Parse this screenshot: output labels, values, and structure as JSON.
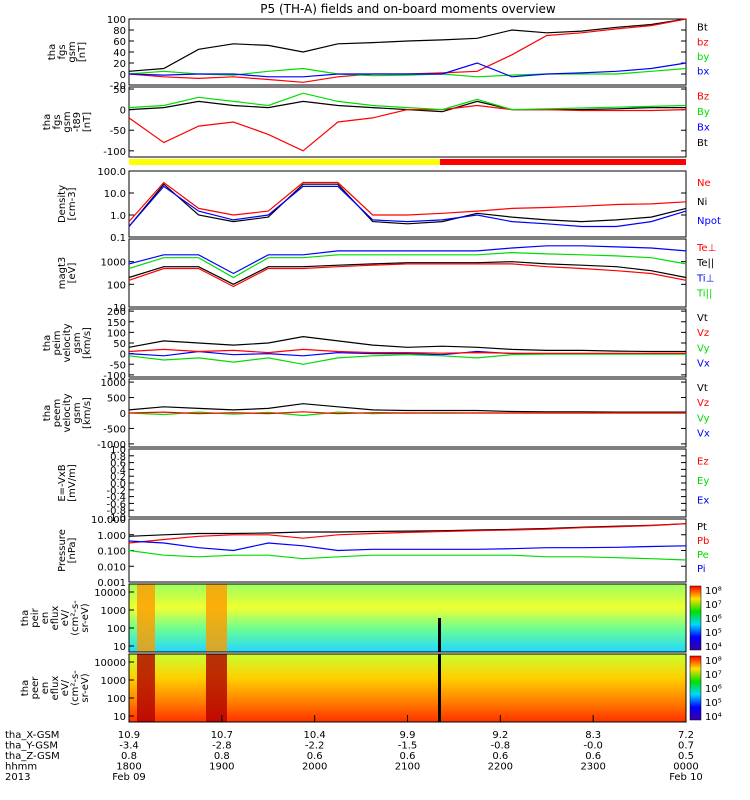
{
  "title": "P5 (TH-A) fields and on-board moments overview",
  "colors": {
    "black": "#000000",
    "red": "#ff0000",
    "green": "#00dd00",
    "blue": "#0000ff",
    "yellow": "#ffff00"
  },
  "chart_data": {
    "type": "line",
    "title": "P5 (TH-A) fields and on-board moments overview",
    "x_axis": {
      "ticks": [
        "1800",
        "1900",
        "2000",
        "2100",
        "2200",
        "2300",
        "0000"
      ],
      "rows": [
        {
          "label": "tha_X-GSM",
          "values": [
            "10.9",
            "10.7",
            "10.4",
            "9.9",
            "9.2",
            "8.3",
            "7.2"
          ]
        },
        {
          "label": "tha_Y-GSM",
          "values": [
            "-3.4",
            "-2.8",
            "-2.2",
            "-1.5",
            "-0.8",
            "-0.0",
            "0.7"
          ]
        },
        {
          "label": "tha_Z-GSM",
          "values": [
            "0.8",
            "0.8",
            "0.6",
            "0.6",
            "0.6",
            "0.6",
            "0.5"
          ]
        },
        {
          "label": "hhmm",
          "values": [
            "1800",
            "1900",
            "2000",
            "2100",
            "2200",
            "2300",
            "0000"
          ]
        },
        {
          "label": "2013",
          "values": [
            "Feb 09",
            "",
            "",
            "",
            "",
            "",
            "Feb 10"
          ]
        }
      ]
    },
    "panels": [
      {
        "id": "fgs",
        "ylabel": [
          "tha",
          "fgs",
          "gsm",
          "[nT]"
        ],
        "yticks": [
          "100",
          "80",
          "60",
          "40",
          "20",
          "0",
          "-20"
        ],
        "ylim": [
          -20,
          100
        ],
        "legend": [
          {
            "name": "Bt",
            "color": "black"
          },
          {
            "name": "bz",
            "color": "red"
          },
          {
            "name": "by",
            "color": "green"
          },
          {
            "name": "bx",
            "color": "blue"
          }
        ],
        "series": [
          {
            "name": "Bt",
            "color": "black",
            "values": [
              5,
              10,
              45,
              55,
              52,
              40,
              55,
              57,
              60,
              62,
              65,
              80,
              75,
              78,
              85,
              90,
              100
            ]
          },
          {
            "name": "bz",
            "color": "red",
            "values": [
              0,
              -5,
              -8,
              -5,
              -10,
              -15,
              -5,
              0,
              0,
              2,
              5,
              35,
              70,
              75,
              82,
              88,
              100
            ]
          },
          {
            "name": "by",
            "color": "green",
            "values": [
              0,
              5,
              0,
              -2,
              5,
              10,
              0,
              -3,
              -2,
              0,
              -5,
              -2,
              0,
              0,
              0,
              5,
              10
            ]
          },
          {
            "name": "bx",
            "color": "blue",
            "values": [
              0,
              -2,
              0,
              0,
              -5,
              -5,
              0,
              0,
              0,
              0,
              20,
              -5,
              0,
              2,
              5,
              10,
              20
            ]
          }
        ]
      },
      {
        "id": "fgs_t89",
        "ylabel": [
          "tha",
          "fgs",
          "gsm",
          "-t89",
          "[nT]"
        ],
        "yticks": [
          "50",
          "0",
          "-50",
          "-100"
        ],
        "ylim": [
          -115,
          55
        ],
        "legend": [
          {
            "name": "Bz",
            "color": "red"
          },
          {
            "name": "By",
            "color": "green"
          },
          {
            "name": "Bx",
            "color": "blue"
          },
          {
            "name": "Bt",
            "color": "black"
          }
        ],
        "series": [
          {
            "name": "Bt",
            "color": "black",
            "values": [
              0,
              5,
              20,
              10,
              5,
              20,
              10,
              5,
              0,
              -5,
              20,
              0,
              0,
              0,
              2,
              5,
              5
            ]
          },
          {
            "name": "Bz",
            "color": "red",
            "values": [
              -20,
              -80,
              -40,
              -30,
              -60,
              -100,
              -30,
              -20,
              0,
              0,
              10,
              0,
              0,
              -2,
              -2,
              -2,
              0
            ]
          },
          {
            "name": "By",
            "color": "green",
            "values": [
              5,
              10,
              30,
              20,
              10,
              40,
              20,
              10,
              5,
              0,
              25,
              0,
              2,
              4,
              6,
              8,
              10
            ]
          }
        ]
      },
      {
        "id": "density",
        "ylabel": [
          "Density",
          "[cm-3]"
        ],
        "yticks": [
          "100.0",
          "10.0",
          "1.0",
          "0.1"
        ],
        "log": true,
        "ylim": [
          0.1,
          100
        ],
        "legend": [
          {
            "name": "Ne",
            "color": "red"
          },
          {
            "name": "Ni",
            "color": "black"
          },
          {
            "name": "Npot",
            "color": "blue"
          }
        ],
        "series": [
          {
            "name": "Ne",
            "color": "red",
            "values": [
              0.5,
              30,
              2,
              1,
              1.5,
              30,
              30,
              1,
              1,
              1.2,
              1.5,
              2,
              2.2,
              2.5,
              3,
              3.2,
              4
            ]
          },
          {
            "name": "Ni",
            "color": "black",
            "values": [
              0.3,
              25,
              1,
              0.5,
              0.8,
              25,
              25,
              0.5,
              0.4,
              0.5,
              1.2,
              0.8,
              0.6,
              0.5,
              0.6,
              0.8,
              2
            ]
          },
          {
            "name": "Npot",
            "color": "blue",
            "values": [
              0.3,
              20,
              1.5,
              0.6,
              1,
              20,
              20,
              0.6,
              0.5,
              0.6,
              1,
              0.5,
              0.4,
              0.3,
              0.3,
              0.5,
              1.5
            ]
          }
        ]
      },
      {
        "id": "temp",
        "ylabel": [
          "magt3",
          "[eV]"
        ],
        "yticks": [
          "1000",
          "100",
          "10"
        ],
        "log": true,
        "ylim": [
          10,
          10000
        ],
        "legend": [
          {
            "name": "Te⊥",
            "color": "red"
          },
          {
            "name": "Te||",
            "color": "black"
          },
          {
            "name": "Ti⊥",
            "color": "blue"
          },
          {
            "name": "Ti||",
            "color": "green"
          }
        ],
        "series": [
          {
            "name": "Ti⊥",
            "color": "blue",
            "values": [
              800,
              2000,
              2000,
              300,
              2000,
              2000,
              3000,
              3000,
              3000,
              3000,
              3000,
              4000,
              5000,
              5000,
              4500,
              4000,
              3000
            ]
          },
          {
            "name": "Ti||",
            "color": "green",
            "values": [
              500,
              1500,
              1500,
              200,
              1500,
              1500,
              2000,
              2000,
              2000,
              2000,
              2000,
              2500,
              2200,
              2000,
              1800,
              1500,
              800
            ]
          },
          {
            "name": "Te||",
            "color": "black",
            "values": [
              200,
              600,
              600,
              100,
              600,
              600,
              700,
              800,
              900,
              900,
              900,
              1000,
              800,
              700,
              600,
              400,
              200
            ]
          },
          {
            "name": "Te⊥",
            "color": "red",
            "values": [
              150,
              500,
              500,
              80,
              500,
              500,
              600,
              700,
              800,
              800,
              800,
              800,
              600,
              500,
              400,
              300,
              150
            ]
          }
        ]
      },
      {
        "id": "peim",
        "ylabel": [
          "tha",
          "peim",
          "velocity",
          "gsm",
          "[km/s]"
        ],
        "yticks": [
          "200",
          "150",
          "100",
          "50",
          "0",
          "-50",
          "-100"
        ],
        "ylim": [
          -110,
          210
        ],
        "legend": [
          {
            "name": "Vt",
            "color": "black"
          },
          {
            "name": "Vz",
            "color": "red"
          },
          {
            "name": "Vy",
            "color": "green"
          },
          {
            "name": "Vx",
            "color": "blue"
          }
        ],
        "series": [
          {
            "name": "Vt",
            "color": "black",
            "values": [
              30,
              60,
              50,
              40,
              50,
              80,
              60,
              40,
              30,
              35,
              30,
              20,
              15,
              15,
              12,
              10,
              10
            ]
          },
          {
            "name": "Vx",
            "color": "blue",
            "values": [
              0,
              -10,
              10,
              -5,
              0,
              -10,
              5,
              0,
              0,
              -5,
              10,
              0,
              0,
              0,
              0,
              0,
              0
            ]
          },
          {
            "name": "Vy",
            "color": "green",
            "values": [
              -10,
              -30,
              -20,
              -40,
              -20,
              -50,
              -20,
              -10,
              -5,
              -10,
              -20,
              -5,
              -2,
              -2,
              -2,
              -2,
              -2
            ]
          },
          {
            "name": "Vz",
            "color": "red",
            "values": [
              10,
              20,
              10,
              15,
              5,
              20,
              10,
              5,
              5,
              2,
              5,
              2,
              1,
              1,
              1,
              1,
              1
            ]
          }
        ]
      },
      {
        "id": "peem",
        "ylabel": [
          "tha",
          "peem",
          "velocity",
          "gsm",
          "[km/s]"
        ],
        "yticks": [
          "1000",
          "500",
          "0",
          "-500",
          "-1000"
        ],
        "ylim": [
          -1100,
          1100
        ],
        "legend": [
          {
            "name": "Vt",
            "color": "black"
          },
          {
            "name": "Vz",
            "color": "red"
          },
          {
            "name": "Vy",
            "color": "green"
          },
          {
            "name": "Vx",
            "color": "blue"
          }
        ],
        "series": [
          {
            "name": "Vt",
            "color": "black",
            "values": [
              100,
              200,
              150,
              100,
              150,
              300,
              200,
              100,
              80,
              80,
              80,
              50,
              40,
              40,
              30,
              30,
              30
            ]
          },
          {
            "name": "Vy",
            "color": "green",
            "values": [
              0,
              -50,
              30,
              -40,
              20,
              -80,
              30,
              -20,
              0,
              -10,
              0,
              0,
              0,
              0,
              0,
              0,
              0
            ]
          },
          {
            "name": "Vz",
            "color": "red",
            "values": [
              0,
              30,
              -20,
              10,
              -20,
              40,
              -20,
              10,
              0,
              5,
              0,
              0,
              0,
              0,
              0,
              0,
              0
            ]
          }
        ]
      },
      {
        "id": "efield",
        "ylabel": [
          "E=-VxB",
          "[mV/m]"
        ],
        "yticks": [
          "1.0",
          "0.8",
          "0.6",
          "0.4",
          "0.2",
          "0.0",
          "-0.2",
          "-0.4",
          "-0.6",
          "-0.8",
          "-1.0"
        ],
        "ylim": [
          -1,
          1
        ],
        "legend": [
          {
            "name": "Ez",
            "color": "red"
          },
          {
            "name": "Ey",
            "color": "green"
          },
          {
            "name": "Ex",
            "color": "blue"
          }
        ],
        "series": []
      },
      {
        "id": "pressure",
        "ylabel": [
          "Pressure",
          "[nPa]"
        ],
        "yticks": [
          "10.000",
          "1.000",
          "0.100",
          "0.010",
          "0.001"
        ],
        "log": true,
        "ylim": [
          0.001,
          10
        ],
        "legend": [
          {
            "name": "Pt",
            "color": "black"
          },
          {
            "name": "Pb",
            "color": "red"
          },
          {
            "name": "Pe",
            "color": "green"
          },
          {
            "name": "Pi",
            "color": "blue"
          }
        ],
        "series": [
          {
            "name": "Pt",
            "color": "black",
            "values": [
              0.8,
              1,
              1.2,
              1.2,
              1.3,
              1.5,
              1.5,
              1.6,
              1.7,
              1.8,
              2,
              2.2,
              2.5,
              3,
              3.5,
              4,
              5
            ]
          },
          {
            "name": "Pb",
            "color": "red",
            "values": [
              0.3,
              0.5,
              0.8,
              1,
              1,
              0.6,
              1,
              1.2,
              1.4,
              1.6,
              1.8,
              2,
              2.3,
              2.8,
              3.2,
              3.8,
              5
            ]
          },
          {
            "name": "Pi",
            "color": "blue",
            "values": [
              0.4,
              0.3,
              0.15,
              0.1,
              0.3,
              0.2,
              0.1,
              0.12,
              0.12,
              0.12,
              0.12,
              0.13,
              0.15,
              0.15,
              0.16,
              0.18,
              0.2
            ]
          },
          {
            "name": "Pe",
            "color": "green",
            "values": [
              0.1,
              0.05,
              0.04,
              0.05,
              0.05,
              0.03,
              0.04,
              0.05,
              0.05,
              0.05,
              0.05,
              0.05,
              0.04,
              0.04,
              0.035,
              0.03,
              0.025
            ]
          }
        ]
      }
    ],
    "spectrograms": [
      {
        "id": "peir",
        "ylabel": [
          "tha",
          "peir",
          "en",
          "eflux",
          "eV/",
          "(cm²-s-",
          "sr-eV)"
        ],
        "yticks": [
          "10000",
          "1000",
          "100",
          "10"
        ],
        "colorbar_ticks": [
          "10⁸",
          "10⁷",
          "10⁶",
          "10⁵",
          "10⁴"
        ]
      },
      {
        "id": "peer",
        "ylabel": [
          "tha",
          "peer",
          "en",
          "eflux",
          "eV/",
          "(cm²-s-",
          "sr-eV)"
        ],
        "yticks": [
          "10000",
          "1000",
          "100",
          "10"
        ],
        "colorbar_ticks": [
          "10⁸",
          "10⁷",
          "10⁶",
          "10⁵",
          "10⁴"
        ]
      }
    ]
  }
}
